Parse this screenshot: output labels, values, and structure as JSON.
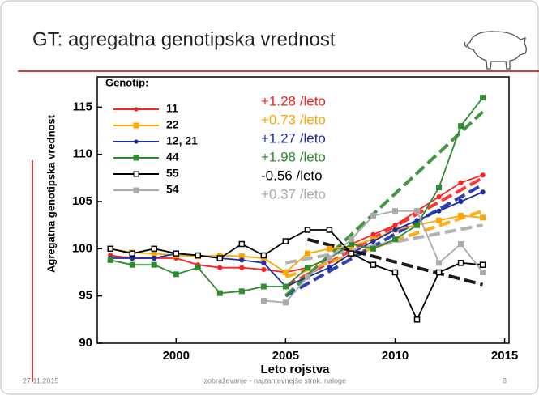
{
  "slide": {
    "title": "GT: agregatna genotipska vrednost",
    "date": "27.11.2015",
    "footer": "Izobraževanje - najzahtevnejše strok. naloge",
    "page_number": "8"
  },
  "chart_data": {
    "type": "line",
    "x_label": "Leto rojstva",
    "y_label": "Agregatna genotipska vrednost",
    "legend_title": "Genotip:",
    "x": [
      1997,
      1998,
      1999,
      2000,
      2001,
      2002,
      2003,
      2004,
      2005,
      2006,
      2007,
      2008,
      2009,
      2010,
      2011,
      2012,
      2013,
      2014
    ],
    "xlim": [
      1996.4,
      2015.2
    ],
    "xticks": [
      2000,
      2005,
      2010,
      2015
    ],
    "ylim": [
      90,
      118.2
    ],
    "yticks": [
      90,
      95,
      100,
      105,
      110,
      115
    ],
    "legend": "upper left",
    "series": [
      {
        "name": "11",
        "color": "#ff2020",
        "marker": "circle",
        "rate_label": "+1.28 /leto",
        "values": [
          99.3,
          99,
          99,
          99,
          98.3,
          98,
          98,
          97.8,
          97.5,
          98,
          99,
          100.5,
          101.5,
          102.5,
          104,
          105.5,
          107,
          107.8
        ],
        "trend_x": [
          2005,
          2014
        ],
        "trend_values": [
          96,
          107.5
        ]
      },
      {
        "name": "22",
        "color": "#ffa500",
        "marker": "square",
        "rate_label": "+0.73 /leto",
        "values": [
          100,
          99.6,
          99.5,
          99.3,
          99.2,
          99.3,
          99.2,
          99,
          97.5,
          99.5,
          100,
          100.3,
          101,
          102,
          102.5,
          103,
          103.5,
          103.3
        ],
        "trend_x": [
          2005,
          2014
        ],
        "trend_values": [
          97,
          104
        ]
      },
      {
        "name": "12, 21",
        "color": "#1a2ea6",
        "marker": "circle",
        "rate_label": "+1.27 /leto",
        "values": [
          99,
          99,
          99,
          99.5,
          99.3,
          99,
          98.8,
          98.5,
          96,
          97,
          98,
          99.5,
          100.8,
          102,
          103,
          104,
          105,
          106
        ],
        "trend_x": [
          2005,
          2014
        ],
        "trend_values": [
          95,
          106.8
        ]
      },
      {
        "name": "44",
        "color": "#2e8b2e",
        "marker": "square",
        "rate_label": "+1.98 /leto",
        "values": [
          98.8,
          98.3,
          98.3,
          97.3,
          98,
          95.3,
          95.5,
          96,
          96,
          98,
          99,
          100.5,
          100,
          101,
          102.5,
          106.5,
          113,
          116
        ],
        "trend_x": [
          2005,
          2014
        ],
        "trend_values": [
          95,
          114.5
        ]
      },
      {
        "name": "55",
        "color": "#000000",
        "marker": "open-square",
        "rate_label": "-0.56 /leto",
        "values": [
          100,
          99.5,
          100,
          99.5,
          99.3,
          99,
          100.5,
          99.3,
          100.8,
          102,
          102,
          99.5,
          98.3,
          97.5,
          92.5,
          97.5,
          98.5,
          98.3
        ],
        "trend_x": [
          2006,
          2014
        ],
        "trend_values": [
          101,
          96.2
        ]
      },
      {
        "name": "54",
        "color": "#aaaaaa",
        "marker": "square",
        "rate_label": "+0.37 /leto",
        "values": [
          null,
          null,
          null,
          null,
          null,
          null,
          null,
          94.5,
          94.3,
          97,
          99,
          101,
          103.5,
          104,
          104,
          98.5,
          100.5,
          97.5
        ],
        "trend_x": [
          2005,
          2014
        ],
        "trend_values": [
          98.5,
          102.5
        ]
      }
    ]
  }
}
